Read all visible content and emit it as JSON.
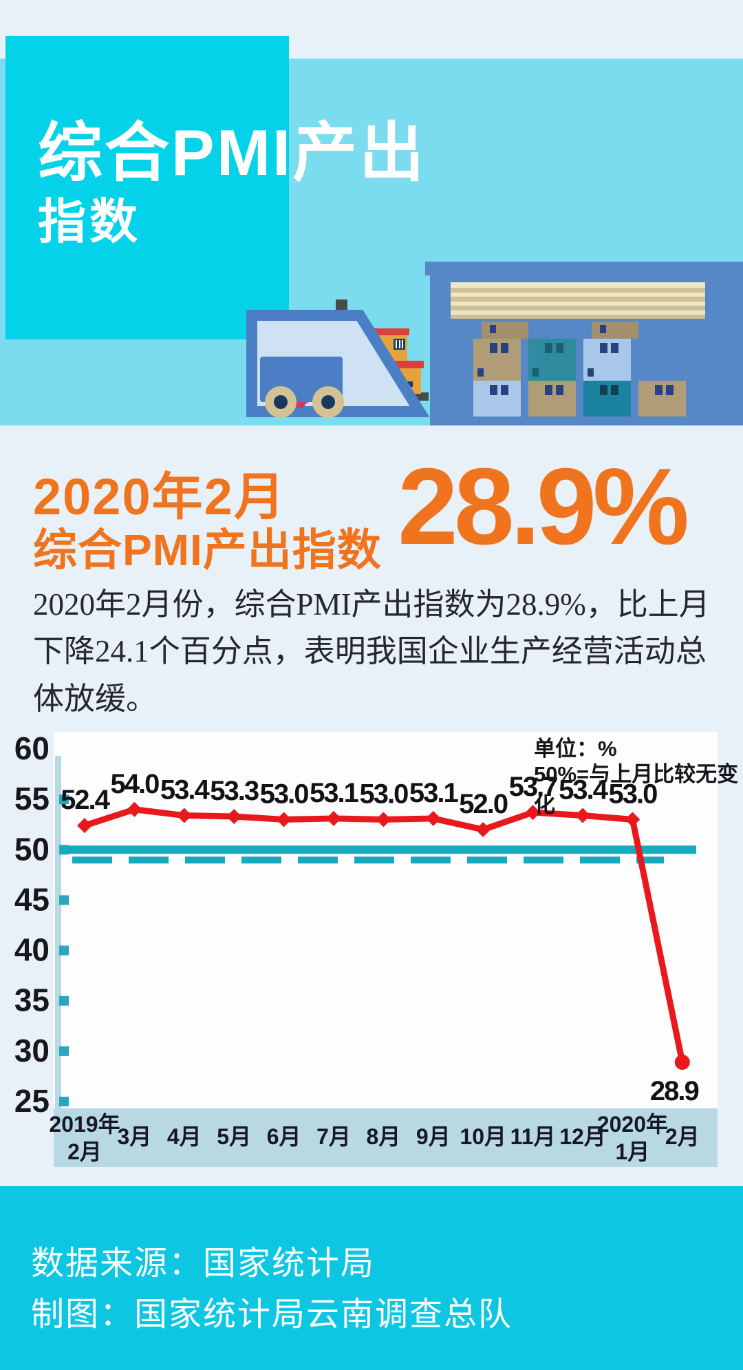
{
  "header": {
    "title_line1": "综合PMI产出",
    "title_line2": "指数"
  },
  "headline": {
    "period": "2020年2月",
    "label": "综合PMI产出指数",
    "value": "28.9%"
  },
  "summary": "2020年2月份，综合PMI产出指数为28.9%，比上月下降24.1个百分点，表明我国企业生产经营活动总体放缓。",
  "chart_data": {
    "type": "line",
    "unit_note": "单位：%",
    "reference_note": "50%=与上月比较无变化",
    "categories": [
      "2019年\n2月",
      "3月",
      "4月",
      "5月",
      "6月",
      "7月",
      "8月",
      "9月",
      "10月",
      "11月",
      "12月",
      "2020年\n1月",
      "2月"
    ],
    "values": [
      52.4,
      54.0,
      53.4,
      53.3,
      53.0,
      53.1,
      53.0,
      53.1,
      52.0,
      53.7,
      53.4,
      53.0,
      28.9
    ],
    "value_labels": [
      "52.4",
      "54.0",
      "53.4",
      "53.3",
      "53.0",
      "53.1",
      "53.0",
      "53.1",
      "52.0",
      "53.7",
      "53.4",
      "53.0",
      "28.9"
    ],
    "ylim": [
      25,
      60
    ],
    "yticks": [
      60,
      55,
      50,
      45,
      40,
      35,
      30,
      25
    ],
    "reference_value": 50,
    "grid": "off",
    "legend": "none",
    "line_color": "#e8191c",
    "reference_color": "#18a9bf",
    "tick_color": "#2aa7bd",
    "axis_color": "#b7d8e5",
    "panel_color": "#fdfdfe",
    "xband_color": "#b8d9e4",
    "label_color": "#111116",
    "xlabel_color": "#17172a"
  },
  "footer": {
    "source": "数据来源：国家统计局",
    "credit": "制图：国家统计局云南调查总队"
  },
  "colors": {
    "page_bg": "#e9f1f8",
    "band": "#7bdcef",
    "square": "#04d2e8",
    "footer_bg": "#0cc6e2",
    "accent_orange": "#f0741e",
    "warehouse_blue": "#5687c6",
    "shutter_tan": "#e8dec0",
    "box_tan": "#b09d77",
    "box_teal": "#2e8ba0",
    "box_lightblue": "#a9c7e9",
    "forklift_blue": "#4b7ec5",
    "driver_red": "#cc3d5e",
    "wheel_tan": "#d6c193"
  }
}
